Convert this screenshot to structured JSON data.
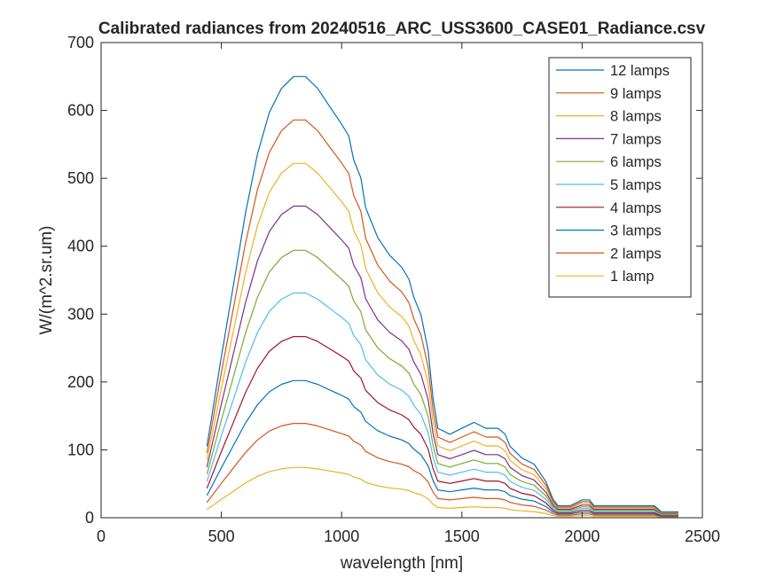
{
  "chart_data": {
    "type": "line",
    "title": "Calibrated radiances from 20240516_ARC_USS3600_CASE01_Radiance.csv",
    "xlabel": "wavelength [nm]",
    "ylabel": "W/(m^2.sr.um)",
    "xlim": [
      0,
      2500
    ],
    "ylim": [
      0,
      700
    ],
    "xticks": [
      0,
      500,
      1000,
      1500,
      2000,
      2500
    ],
    "yticks": [
      0,
      100,
      200,
      300,
      400,
      500,
      600,
      700
    ],
    "grid": false,
    "legend_position": "top-right",
    "base_curve_1_lamp": {
      "x": [
        440,
        460,
        500,
        550,
        600,
        650,
        700,
        750,
        800,
        825,
        850,
        875,
        900,
        950,
        1000,
        1030,
        1050,
        1080,
        1100,
        1150,
        1200,
        1250,
        1280,
        1300,
        1330,
        1360,
        1380,
        1400,
        1450,
        1500,
        1550,
        1600,
        1650,
        1680,
        1700,
        1750,
        1800,
        1850,
        1870,
        1880,
        1900,
        1920,
        1950,
        2000,
        2030,
        2050,
        2100,
        2150,
        2200,
        2250,
        2300,
        2330,
        2350,
        2400
      ],
      "y": [
        12,
        17,
        27,
        39,
        51,
        61,
        68,
        72,
        74,
        74,
        74,
        73,
        72,
        69,
        66,
        64,
        60,
        57,
        52,
        47,
        44,
        42,
        40,
        37,
        34,
        28,
        20,
        15,
        14,
        15,
        16,
        15,
        15,
        14,
        12,
        10,
        9,
        6,
        4,
        3,
        2,
        2,
        2,
        3,
        3,
        2,
        2,
        2,
        2,
        2,
        2,
        1,
        1,
        1
      ]
    },
    "series": [
      {
        "name": "12 lamps",
        "color": "#0072BD",
        "peak": 650
      },
      {
        "name": "9 lamps",
        "color": "#D95319",
        "peak": 586
      },
      {
        "name": "8 lamps",
        "color": "#EDB120",
        "peak": 522
      },
      {
        "name": "7 lamps",
        "color": "#7E2F8E",
        "peak": 459
      },
      {
        "name": "6 lamps",
        "color": "#77AC30",
        "peak": 394
      },
      {
        "name": "5 lamps",
        "color": "#4DBEEE",
        "peak": 331
      },
      {
        "name": "4 lamps",
        "color": "#A2142F",
        "peak": 267
      },
      {
        "name": "3 lamps",
        "color": "#0072BD",
        "peak": 202
      },
      {
        "name": "2 lamps",
        "color": "#D95319",
        "peak": 139
      },
      {
        "name": "1 lamp",
        "color": "#EDB120",
        "peak": 74
      }
    ]
  }
}
